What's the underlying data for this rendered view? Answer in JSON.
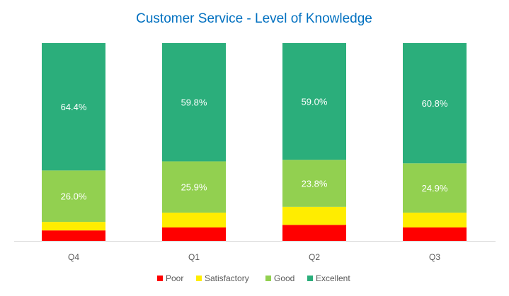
{
  "chart_data": {
    "type": "bar",
    "stacked": true,
    "percent": true,
    "title": "Customer Service - Level of Knowledge",
    "xlabel": "",
    "ylabel": "",
    "ylim": [
      0,
      100
    ],
    "grid": false,
    "legend_position": "bottom",
    "categories": [
      "Q4",
      "Q1",
      "Q2",
      "Q3"
    ],
    "series": [
      {
        "name": "Poor",
        "color": "#FF0000",
        "values": [
          5.3,
          6.8,
          8.1,
          6.8
        ],
        "labels": [
          "",
          "",
          "",
          ""
        ]
      },
      {
        "name": "Satisfactory",
        "color": "#FFED00",
        "values": [
          4.3,
          7.5,
          9.1,
          7.5
        ],
        "labels": [
          "",
          "",
          "",
          ""
        ]
      },
      {
        "name": "Good",
        "color": "#92D050",
        "values": [
          26.0,
          25.9,
          23.8,
          24.9
        ],
        "labels": [
          "26.0%",
          "25.9%",
          "23.8%",
          "24.9%"
        ]
      },
      {
        "name": "Excellent",
        "color": "#2BAE7B",
        "values": [
          64.4,
          59.8,
          59.0,
          60.8
        ],
        "labels": [
          "64.4%",
          "59.8%",
          "59.0%",
          "60.8%"
        ]
      }
    ]
  }
}
